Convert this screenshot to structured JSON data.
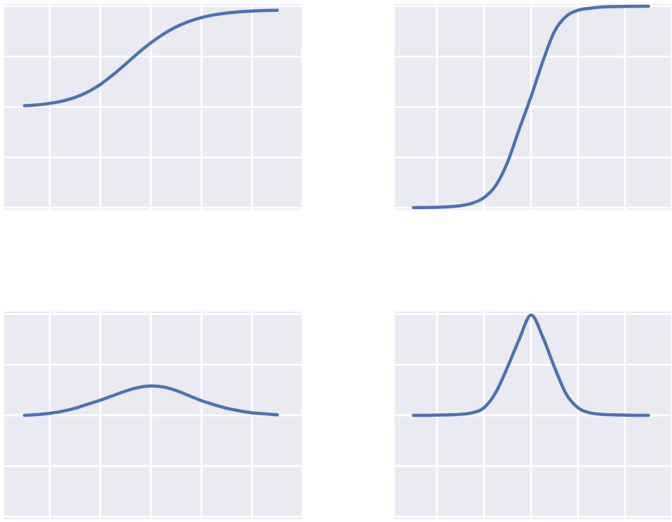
{
  "colors": {
    "panel_background": "#EAEAF2",
    "grid": "#FFFFFF",
    "line": "#4C72B0"
  },
  "chart_data": [
    {
      "type": "line",
      "position": "top-left",
      "grid": true,
      "title": "",
      "xlabel": "",
      "ylabel": "",
      "xlim": [
        -2.9,
        3.0
      ],
      "ylim": [
        -1.02,
        1.02
      ],
      "x": [
        -2.5,
        -2.25,
        -2.0,
        -1.75,
        -1.5,
        -1.25,
        -1.0,
        -0.75,
        -0.5,
        -0.25,
        0.0,
        0.25,
        0.5,
        0.75,
        1.0,
        1.25,
        1.5,
        1.75,
        2.0,
        2.25,
        2.5
      ],
      "series": [
        {
          "values": [
            0.013,
            0.021,
            0.036,
            0.059,
            0.095,
            0.149,
            0.224,
            0.319,
            0.426,
            0.536,
            0.637,
            0.724,
            0.795,
            0.848,
            0.887,
            0.914,
            0.932,
            0.944,
            0.952,
            0.957,
            0.96
          ]
        }
      ]
    },
    {
      "type": "line",
      "position": "top-right",
      "grid": true,
      "title": "",
      "xlabel": "",
      "ylabel": "",
      "xlim": [
        -2.9,
        3.0
      ],
      "ylim": [
        -1.02,
        1.02
      ],
      "x": [
        -2.5,
        -2.25,
        -2.0,
        -1.75,
        -1.5,
        -1.25,
        -1.0,
        -0.75,
        -0.5,
        -0.25,
        0.0,
        0.25,
        0.5,
        0.75,
        1.0,
        1.25,
        1.5,
        1.75,
        2.0,
        2.25,
        2.5
      ],
      "series": [
        {
          "values": [
            -0.998,
            -0.997,
            -0.995,
            -0.99,
            -0.98,
            -0.955,
            -0.9,
            -0.78,
            -0.55,
            -0.22,
            0.1,
            0.45,
            0.75,
            0.9,
            0.96,
            0.98,
            0.992,
            0.996,
            0.998,
            0.999,
            1.0
          ]
        }
      ]
    },
    {
      "type": "line",
      "position": "bottom-left",
      "grid": true,
      "title": "",
      "xlabel": "",
      "ylabel": "",
      "xlim": [
        -2.9,
        3.0
      ],
      "ylim": [
        -2.05,
        2.05
      ],
      "x": [
        -2.5,
        -2.25,
        -2.0,
        -1.75,
        -1.5,
        -1.25,
        -1.0,
        -0.75,
        -0.5,
        -0.25,
        0.0,
        0.25,
        0.5,
        0.75,
        1.0,
        1.25,
        1.5,
        1.75,
        2.0,
        2.25,
        2.5
      ],
      "series": [
        {
          "values": [
            0.0,
            0.015,
            0.04,
            0.08,
            0.14,
            0.22,
            0.3,
            0.39,
            0.48,
            0.55,
            0.58,
            0.56,
            0.49,
            0.39,
            0.29,
            0.21,
            0.14,
            0.09,
            0.05,
            0.03,
            0.01
          ]
        }
      ]
    },
    {
      "type": "line",
      "position": "bottom-right",
      "grid": true,
      "title": "",
      "xlabel": "",
      "ylabel": "",
      "xlim": [
        -2.9,
        3.0
      ],
      "ylim": [
        -2.05,
        2.05
      ],
      "x": [
        -2.5,
        -2.25,
        -2.0,
        -1.75,
        -1.5,
        -1.25,
        -1.0,
        -0.75,
        -0.5,
        -0.25,
        0.0,
        0.25,
        0.5,
        0.75,
        1.0,
        1.25,
        1.5,
        1.75,
        2.0,
        2.25,
        2.5
      ],
      "series": [
        {
          "values": [
            0.0,
            0.0,
            0.005,
            0.01,
            0.02,
            0.05,
            0.15,
            0.45,
            0.95,
            1.5,
            1.98,
            1.55,
            0.95,
            0.42,
            0.15,
            0.05,
            0.02,
            0.01,
            0.005,
            0.0,
            0.0
          ]
        }
      ]
    }
  ]
}
